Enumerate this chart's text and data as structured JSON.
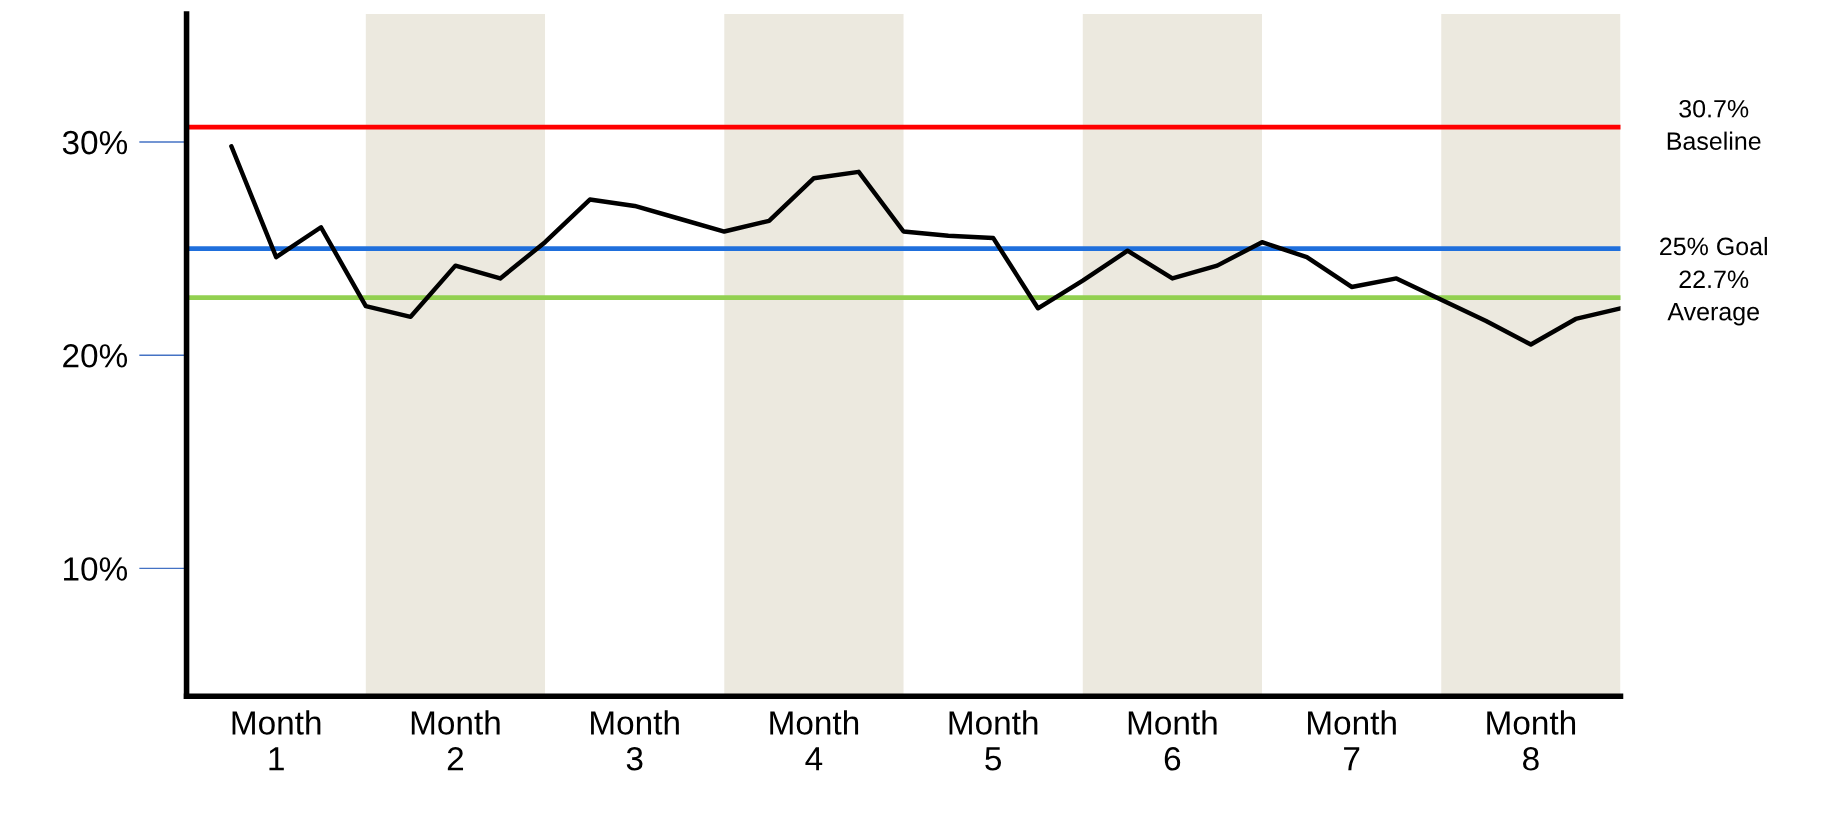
{
  "chart_data": {
    "type": "line",
    "categories": [
      null,
      "Month 1",
      null,
      null,
      null,
      "Month 2",
      null,
      null,
      null,
      "Month 3",
      null,
      null,
      null,
      "Month 4",
      null,
      null,
      null,
      "Month 5",
      null,
      null,
      null,
      "Month 6",
      null,
      null,
      null,
      "Month 7",
      null,
      null,
      null,
      "Month 8",
      null,
      null
    ],
    "series": [
      {
        "color": "#000000",
        "values": [
          29.8,
          24.6,
          26.0,
          22.3,
          21.8,
          24.2,
          23.6,
          25.3,
          27.3,
          27.0,
          26.4,
          25.8,
          26.3,
          28.3,
          28.6,
          25.8,
          25.6,
          25.5,
          22.2,
          23.5,
          24.9,
          23.6,
          24.2,
          25.3,
          24.6,
          23.2,
          23.6,
          22.6,
          21.6,
          20.5,
          21.7,
          22.2
        ]
      }
    ],
    "ylim": [
      4,
      36
    ],
    "yticks": [
      {
        "value": 10,
        "label": "10%"
      },
      {
        "value": 20,
        "label": "20%"
      },
      {
        "value": 30,
        "label": "30%"
      }
    ],
    "ref_lines": [
      {
        "axis": "y",
        "value": 30.7,
        "label": "30.7%\nBaseline",
        "color": "#ff0000"
      },
      {
        "axis": "y",
        "value": 25,
        "label": "25% Goal",
        "color": "#1f6fdc"
      },
      {
        "axis": "y",
        "value": 22.7,
        "label": "22.7%\nAverage",
        "color": "#92d050"
      }
    ],
    "grid": false,
    "marker": "none",
    "line_style": "solid"
  }
}
